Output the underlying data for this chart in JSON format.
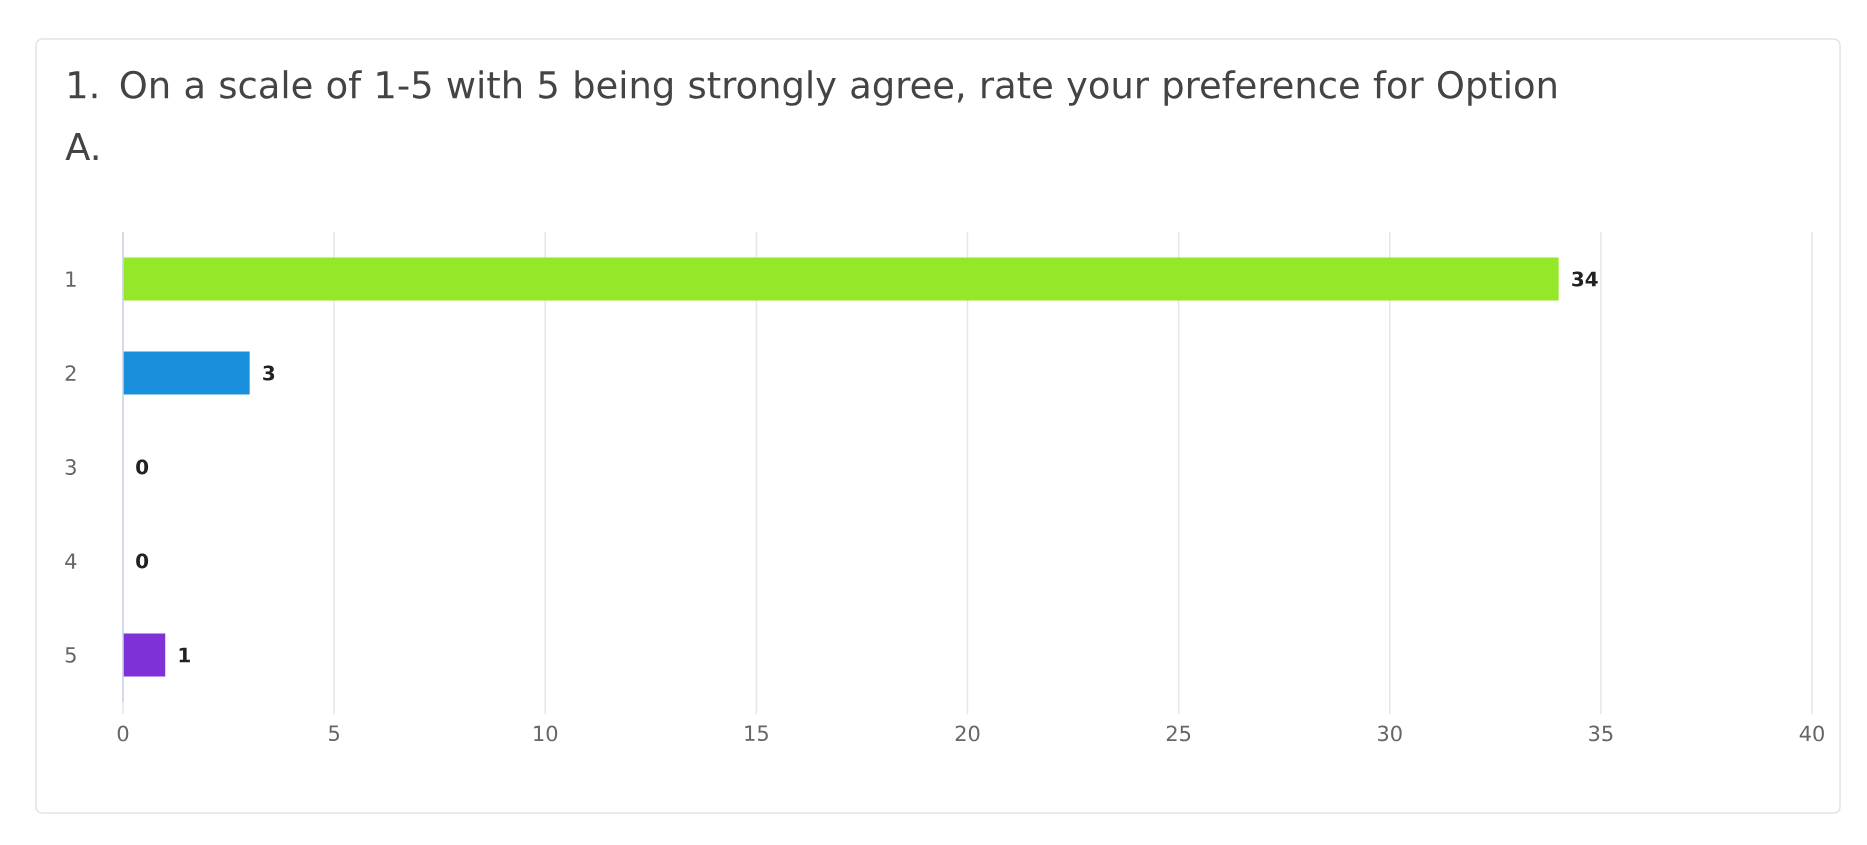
{
  "chart_data": {
    "type": "bar",
    "orientation": "horizontal",
    "title": "1. On a scale of 1-5 with 5 being strongly agree, rate your preference for Option A.",
    "categories": [
      "1",
      "2",
      "3",
      "4",
      "5"
    ],
    "values": [
      34,
      3,
      0,
      0,
      1
    ],
    "colors": [
      "#94e829",
      "#1a90dd",
      null,
      null,
      "#7f31d8"
    ],
    "xlim": [
      0,
      40
    ],
    "xticks": [
      0,
      5,
      10,
      15,
      20,
      25,
      30,
      35,
      40
    ],
    "grid": "x",
    "data_labels": true
  }
}
